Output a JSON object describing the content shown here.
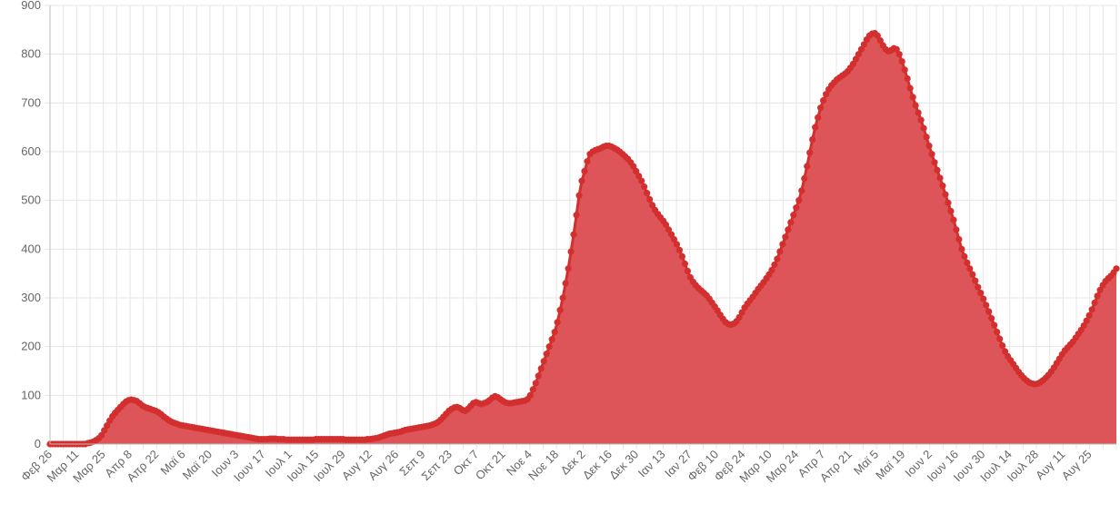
{
  "chart_data": {
    "type": "area",
    "title": "",
    "xlabel": "",
    "ylabel": "",
    "ylim": [
      0,
      900
    ],
    "yticks": [
      0,
      100,
      200,
      300,
      400,
      500,
      600,
      700,
      800,
      900
    ],
    "grid": true,
    "legend": "none",
    "x_tick_labels": [
      "Φεβ 26",
      "Μαρ 11",
      "Μαρ 25",
      "Απρ 8",
      "Απρ 22",
      "Μαϊ 6",
      "Μαϊ 20",
      "Ιουν 3",
      "Ιουν 17",
      "Ιουλ 1",
      "Ιουλ 15",
      "Ιουλ 29",
      "Αυγ 12",
      "Αυγ 26",
      "Σεπ 9",
      "Σεπ 23",
      "Οκτ 7",
      "Οκτ 21",
      "Νοε 4",
      "Νοε 18",
      "Δεκ 2",
      "Δεκ 16",
      "Δεκ 30",
      "Ιαν 13",
      "Ιαν 27",
      "Φεβ 10",
      "Φεβ 24",
      "Μαρ 10",
      "Μαρ 24",
      "Απρ 7",
      "Απρ 21",
      "Μαϊ 5",
      "Μαϊ 19",
      "Ιουν 2",
      "Ιουν 16",
      "Ιουν 30",
      "Ιουλ 14",
      "Ιουλ 28",
      "Αυγ 11",
      "Αυγ 25"
    ],
    "series": [
      {
        "color": "#d32f2f",
        "fill": "#dd5558",
        "values": [
          0,
          0,
          0,
          0,
          0,
          0,
          0,
          0,
          0,
          0,
          0,
          0,
          0,
          0,
          2,
          3,
          5,
          8,
          12,
          18,
          28,
          38,
          48,
          57,
          64,
          70,
          76,
          82,
          87,
          90,
          91,
          90,
          88,
          84,
          79,
          76,
          74,
          72,
          70,
          68,
          65,
          61,
          56,
          52,
          48,
          45,
          43,
          41,
          39,
          38,
          37,
          36,
          35,
          34,
          33,
          32,
          31,
          30,
          29,
          28,
          27,
          26,
          25,
          24,
          23,
          22,
          21,
          20,
          19,
          18,
          17,
          16,
          15,
          14,
          13,
          12,
          11,
          10,
          10,
          10,
          10,
          11,
          11,
          11,
          10,
          10,
          10,
          9,
          9,
          9,
          9,
          9,
          9,
          9,
          9,
          9,
          9,
          9,
          10,
          10,
          10,
          10,
          10,
          10,
          10,
          10,
          10,
          10,
          10,
          9,
          9,
          9,
          9,
          9,
          9,
          9,
          9,
          10,
          10,
          11,
          12,
          13,
          15,
          17,
          19,
          21,
          22,
          23,
          24,
          25,
          27,
          29,
          30,
          31,
          32,
          33,
          34,
          35,
          36,
          37,
          38,
          40,
          42,
          45,
          50,
          56,
          62,
          68,
          72,
          75,
          76,
          74,
          70,
          68,
          72,
          78,
          84,
          86,
          84,
          82,
          84,
          86,
          90,
          95,
          98,
          96,
          92,
          88,
          85,
          84,
          84,
          85,
          86,
          87,
          88,
          89,
          92,
          100,
          112,
          125,
          140,
          155,
          170,
          185,
          200,
          215,
          230,
          250,
          275,
          300,
          330,
          360,
          395,
          430,
          470,
          510,
          540,
          560,
          580,
          595,
          600,
          603,
          605,
          607,
          610,
          612,
          612,
          610,
          607,
          604,
          600,
          595,
          590,
          585,
          578,
          570,
          560,
          550,
          540,
          528,
          515,
          502,
          490,
          480,
          472,
          465,
          458,
          450,
          440,
          430,
          420,
          410,
          398,
          385,
          370,
          355,
          342,
          333,
          326,
          320,
          315,
          310,
          305,
          298,
          290,
          282,
          274,
          265,
          257,
          250,
          246,
          245,
          247,
          252,
          260,
          270,
          280,
          288,
          295,
          302,
          310,
          318,
          325,
          332,
          340,
          348,
          357,
          368,
          380,
          395,
          410,
          425,
          440,
          455,
          470,
          485,
          500,
          520,
          545,
          570,
          598,
          625,
          650,
          670,
          690,
          705,
          718,
          728,
          736,
          742,
          748,
          752,
          756,
          760,
          765,
          772,
          780,
          790,
          800,
          810,
          820,
          830,
          838,
          842,
          843,
          838,
          828,
          818,
          810,
          806,
          808,
          812,
          810,
          800,
          785,
          768,
          750,
          730,
          712,
          695,
          680,
          665,
          648,
          630,
          612,
          595,
          578,
          562,
          546,
          530,
          512,
          495,
          478,
          460,
          440,
          420,
          400,
          385,
          372,
          360,
          348,
          335,
          322,
          310,
          298,
          285,
          272,
          258,
          244,
          230,
          216,
          202,
          190,
          180,
          172,
          164,
          156,
          148,
          141,
          135,
          130,
          126,
          124,
          123,
          124,
          127,
          131,
          136,
          142,
          149,
          157,
          166,
          175,
          184,
          192,
          198,
          204,
          210,
          218,
          226,
          234,
          243,
          253,
          264,
          276,
          290,
          304,
          316,
          326,
          334,
          340,
          345,
          352,
          360
        ]
      }
    ]
  }
}
